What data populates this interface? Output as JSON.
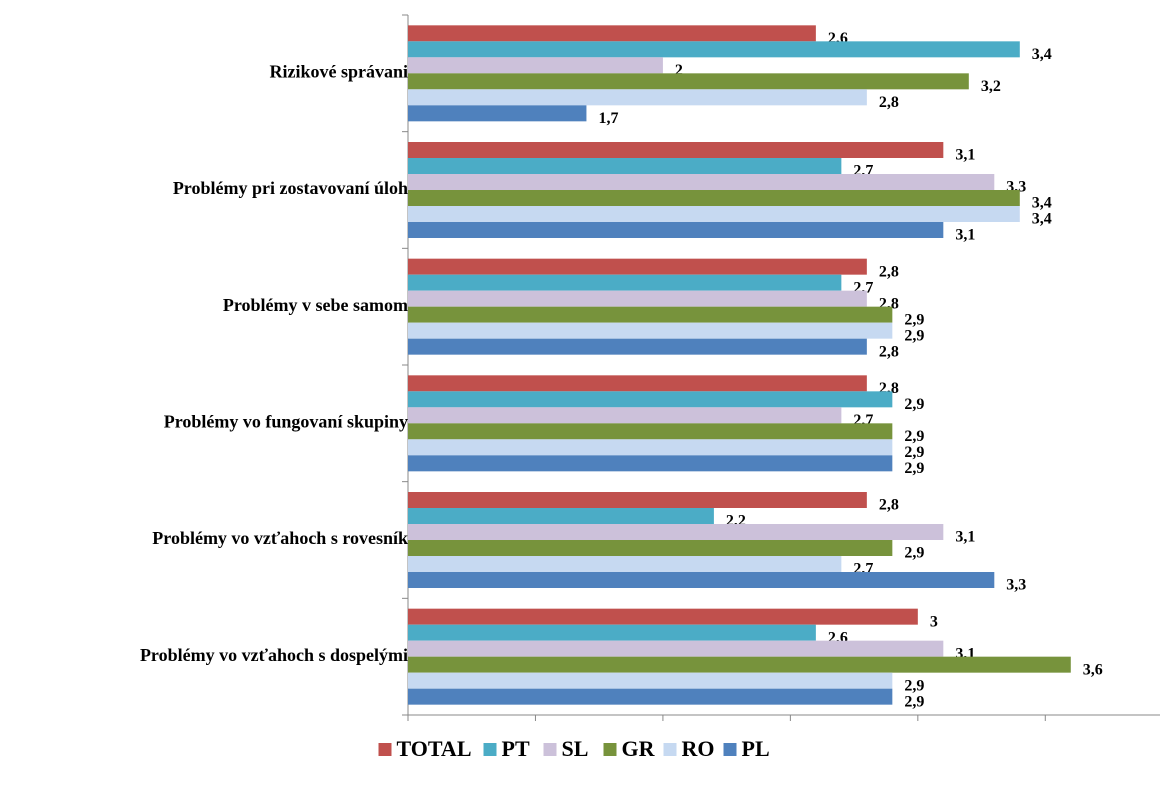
{
  "chart_data": {
    "type": "hbar",
    "categories": [
      "Rizikové správani",
      "Problémy pri zostavovaní úloh",
      "Problémy v sebe samom",
      "Problémy vo fungovaní skupiny",
      "Problémy vo vzťahoch s rovesník",
      "Problémy vo vzťahoch s dospelými"
    ],
    "series": [
      {
        "name": "TOTAL",
        "color": "#c0504d",
        "values": [
          2.6,
          3.1,
          2.8,
          2.8,
          2.8,
          3
        ],
        "value_labels": [
          "2,6",
          "3,1",
          "2,8",
          "2,8",
          "2,8",
          "3"
        ]
      },
      {
        "name": "PT",
        "color": "#4bacc6",
        "values": [
          3.4,
          2.7,
          2.7,
          2.9,
          2.2,
          2.6
        ],
        "value_labels": [
          "3,4",
          "2,7",
          "2,7",
          "2,9",
          "2,2",
          "2,6"
        ]
      },
      {
        "name": "SL",
        "color": "#ccc1da",
        "values": [
          2,
          3.3,
          2.8,
          2.7,
          3.1,
          3.1
        ],
        "value_labels": [
          "2",
          "3,3",
          "2,8",
          "2,7",
          "3,1",
          "3,1"
        ]
      },
      {
        "name": "GR",
        "color": "#77933c",
        "values": [
          3.2,
          3.4,
          2.9,
          2.9,
          2.9,
          3.6
        ],
        "value_labels": [
          "3,2",
          "3,4",
          "2,9",
          "2,9",
          "2,9",
          "3,6"
        ]
      },
      {
        "name": "RO",
        "color": "#c6d9f1",
        "values": [
          2.8,
          3.4,
          2.9,
          2.9,
          2.7,
          2.9
        ],
        "value_labels": [
          "2,8",
          "3,4",
          "2,9",
          "2,9",
          "2,7",
          "2,9"
        ]
      },
      {
        "name": "PL",
        "color": "#4f81bd",
        "values": [
          1.7,
          3.1,
          2.8,
          2.9,
          3.3,
          2.9
        ],
        "value_labels": [
          "1,7",
          "3,1",
          "2,8",
          "2,9",
          "3,3",
          "2,9"
        ]
      }
    ],
    "xlim": [
      1,
      3.95
    ],
    "xticks": [
      1,
      1.5,
      2,
      2.5,
      3,
      3.5
    ],
    "legend": "bottom"
  }
}
